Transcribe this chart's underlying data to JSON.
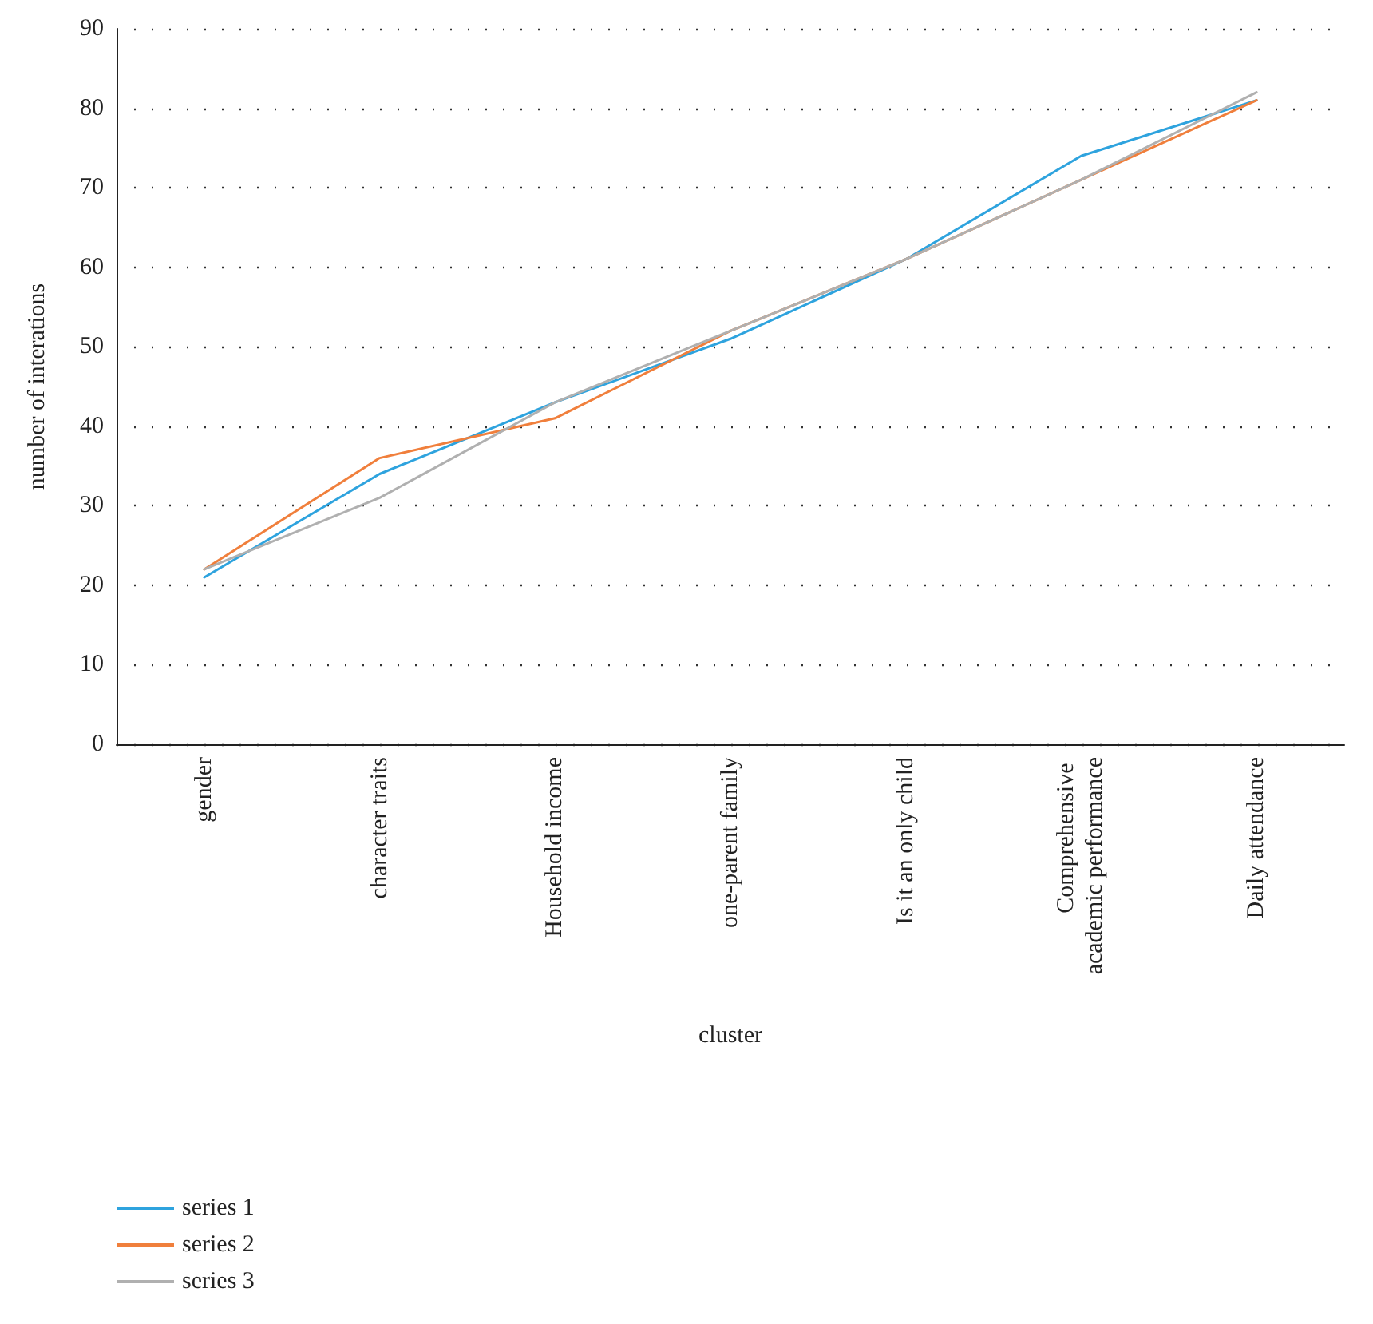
{
  "chart_data": {
    "type": "line",
    "xlabel": "cluster",
    "ylabel": "number of interations",
    "categories": [
      "gender",
      "character traits",
      "Household income",
      "one-parent family",
      "Is it an only child",
      "Comprehensive academic performance",
      "Daily attendance"
    ],
    "series": [
      {
        "name": "series 1",
        "color": "#2ea3de",
        "values": [
          21,
          34,
          43,
          51,
          61,
          74,
          81
        ]
      },
      {
        "name": "series 2",
        "color": "#f07f3c",
        "values": [
          22,
          36,
          41,
          52,
          61,
          71,
          81
        ]
      },
      {
        "name": "series 3",
        "color": "#b0b0b0",
        "values": [
          22,
          31,
          43,
          52,
          61,
          71,
          82
        ]
      }
    ],
    "ylim": [
      0,
      90
    ],
    "yticks": [
      0,
      10,
      20,
      30,
      40,
      50,
      60,
      70,
      80,
      90
    ],
    "grid": "y",
    "legend": "bottom left",
    "marker": "none",
    "line_style": "solid"
  }
}
